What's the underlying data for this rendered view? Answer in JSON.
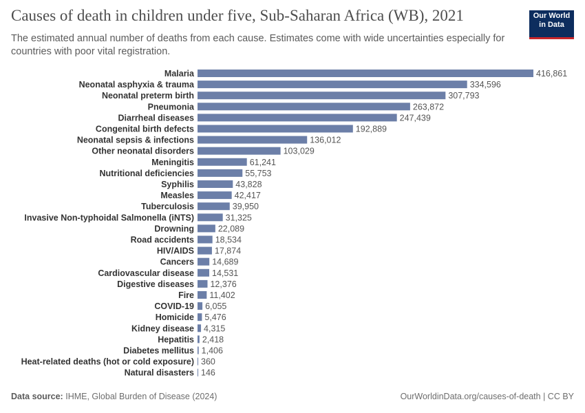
{
  "header": {
    "title": "Causes of death in children under five, Sub-Saharan Africa (WB), 2021",
    "subtitle": "The estimated annual number of deaths from each cause. Estimates come with wide uncertainties especially for countries with poor vital registration."
  },
  "logo": {
    "line1": "Our World",
    "line2": "in Data"
  },
  "footer": {
    "source_label": "Data source:",
    "source_text": "IHME, Global Burden of Disease (2024)",
    "credit": "OurWorldinData.org/causes-of-death | CC BY"
  },
  "colors": {
    "bar": "#6c7fa8",
    "logo_bg": "#0d2d5e",
    "logo_accent": "#c8262a"
  },
  "chart_data": {
    "type": "bar",
    "orientation": "horizontal",
    "categories": [
      "Malaria",
      "Neonatal asphyxia & trauma",
      "Neonatal preterm birth",
      "Pneumonia",
      "Diarrheal diseases",
      "Congenital birth defects",
      "Neonatal sepsis & infections",
      "Other neonatal disorders",
      "Meningitis",
      "Nutritional deficiencies",
      "Syphilis",
      "Measles",
      "Tuberculosis",
      "Invasive Non-typhoidal Salmonella (iNTS)",
      "Drowning",
      "Road accidents",
      "HIV/AIDS",
      "Cancers",
      "Cardiovascular disease",
      "Digestive diseases",
      "Fire",
      "COVID-19",
      "Homicide",
      "Kidney disease",
      "Hepatitis",
      "Diabetes mellitus",
      "Heat-related deaths (hot or cold exposure)",
      "Natural disasters"
    ],
    "values": [
      416861,
      334596,
      307793,
      263872,
      247439,
      192889,
      136012,
      103029,
      61241,
      55753,
      43828,
      42417,
      39950,
      31325,
      22089,
      18534,
      17874,
      14689,
      14531,
      12376,
      11402,
      6055,
      5476,
      4315,
      2418,
      1406,
      360,
      146
    ],
    "value_labels": [
      "416,861",
      "334,596",
      "307,793",
      "263,872",
      "247,439",
      "192,889",
      "136,012",
      "103,029",
      "61,241",
      "55,753",
      "43,828",
      "42,417",
      "39,950",
      "31,325",
      "22,089",
      "18,534",
      "17,874",
      "14,689",
      "14,531",
      "12,376",
      "11,402",
      "6,055",
      "5,476",
      "4,315",
      "2,418",
      "1,406",
      "360",
      "146"
    ],
    "xlim": [
      0,
      416861
    ],
    "grid": false,
    "legend": "none"
  }
}
